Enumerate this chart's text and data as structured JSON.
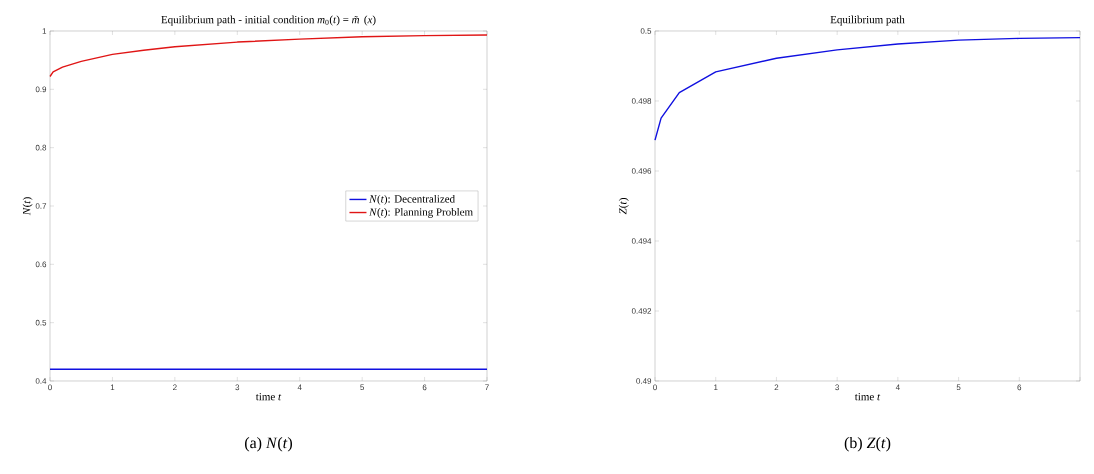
{
  "chart_data": [
    {
      "type": "line",
      "title": "Equilibrium path - initial condition *m*$_{0}$(*t*) = *m̃*(*x*)",
      "xlabel": "time *t*",
      "ylabel": "*N*(*t*)",
      "xlim": [
        0,
        7
      ],
      "xticks": [
        0,
        1,
        2,
        3,
        4,
        5,
        6,
        7
      ],
      "ylim": [
        0.4,
        1
      ],
      "yticks": [
        0.4,
        0.5,
        0.6,
        0.7,
        0.8,
        0.9,
        1
      ],
      "legend": "right",
      "grid": false,
      "series": [
        {
          "name": "*N*(*t*): Decentralized",
          "color": "#1010e0",
          "x": [
            0,
            7
          ],
          "values": [
            0.42,
            0.42
          ]
        },
        {
          "name": "*N*(*t*): Planning Problem",
          "color": "#e01515",
          "x": [
            0,
            0.05,
            0.2,
            0.5,
            1,
            1.5,
            2,
            3,
            4,
            5,
            6,
            7
          ],
          "values": [
            0.922,
            0.93,
            0.938,
            0.948,
            0.96,
            0.967,
            0.973,
            0.981,
            0.986,
            0.99,
            0.992,
            0.993
          ]
        }
      ],
      "annotations": [
        "(a) *N*(*t*)"
      ]
    },
    {
      "type": "line",
      "title": "Equilibrium path",
      "xlabel": "time *t*",
      "ylabel": "*Z*(*t*)",
      "xlim": [
        0,
        7
      ],
      "xticks": [
        0,
        1,
        2,
        3,
        4,
        5,
        6,
        {
          "value": 7,
          "label": null
        }
      ],
      "ylim": [
        0.49,
        0.5
      ],
      "yticks": [
        0.49,
        0.492,
        0.494,
        0.496,
        0.498,
        0.5
      ],
      "grid": false,
      "series": [
        {
          "color": "#1010e0",
          "x": [
            0,
            0.1,
            0.4,
            1,
            2,
            3,
            4,
            5,
            6,
            7
          ],
          "values": [
            0.49688,
            0.49751,
            0.49824,
            0.49883,
            0.49922,
            0.49946,
            0.49963,
            0.49974,
            0.49979,
            0.49981
          ]
        }
      ],
      "annotations": [
        "(b) *Z*(*t*)"
      ]
    }
  ]
}
